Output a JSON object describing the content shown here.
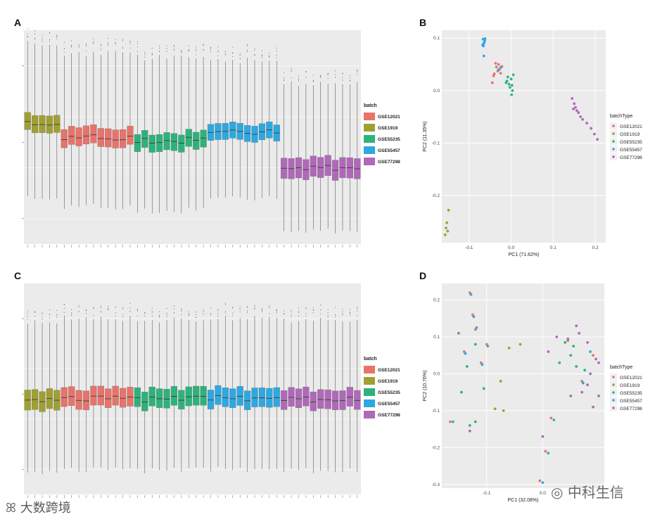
{
  "panels": [
    {
      "letter": "A",
      "type": "boxplot",
      "legend_title": "batch"
    },
    {
      "letter": "B",
      "type": "scatter",
      "legend_title": "batchType"
    },
    {
      "letter": "C",
      "type": "boxplot",
      "legend_title": "batch"
    },
    {
      "letter": "D",
      "type": "scatter",
      "legend_title": "batchType"
    }
  ],
  "batches": [
    {
      "name": "GSE12021",
      "color": "#E8736B"
    },
    {
      "name": "GSE1919",
      "color": "#A0A032"
    },
    {
      "name": "GSE55235",
      "color": "#2DB37A"
    },
    {
      "name": "GSE55457",
      "color": "#2EA8E0"
    },
    {
      "name": "GSE77298",
      "color": "#B069B8"
    }
  ],
  "watermarks": {
    "left": "大数跨境",
    "right": "中科生信"
  },
  "chart_data": [
    {
      "panel": "A",
      "type": "boxplot",
      "title": "",
      "group_order": [
        "GSE1919",
        "GSE12021",
        "GSE55235",
        "GSE55457",
        "GSE77298"
      ],
      "groups": [
        {
          "name": "GSE1919",
          "n": 5,
          "q1": 0.35,
          "median": 0.43,
          "q3": 0.52,
          "whisker_low": -0.3,
          "whisker_high": 1.22
        },
        {
          "name": "GSE12021",
          "n": 10,
          "q1": 0.22,
          "median": 0.3,
          "q3": 0.4,
          "whisker_low": -0.38,
          "whisker_high": 1.12
        },
        {
          "name": "GSE55235",
          "n": 10,
          "q1": 0.18,
          "median": 0.27,
          "q3": 0.35,
          "whisker_low": -0.42,
          "whisker_high": 1.08
        },
        {
          "name": "GSE55457",
          "n": 10,
          "q1": 0.27,
          "median": 0.35,
          "q3": 0.43,
          "whisker_low": -0.3,
          "whisker_high": 1.05
        },
        {
          "name": "GSE77298",
          "n": 11,
          "q1": -0.1,
          "median": 0.0,
          "q3": 0.1,
          "whisker_low": -0.62,
          "whisker_high": 0.82
        }
      ]
    },
    {
      "panel": "B",
      "type": "scatter",
      "title": "",
      "xlabel": "PC1 (71.62%)",
      "ylabel": "PC2 (11.35%)",
      "xlim": [
        -0.165,
        0.225
      ],
      "ylim": [
        -0.29,
        0.115
      ],
      "xticks": [
        -0.1,
        0,
        0.1,
        0.2
      ],
      "xtick_labels": [
        "-0.1",
        "0.0",
        "0.1",
        "0.2"
      ],
      "yticks": [
        0.1,
        0,
        -0.1,
        -0.2
      ],
      "ytick_labels": [
        "0.1",
        "0.0",
        "-0.1",
        "-0.2"
      ],
      "series": [
        {
          "name": "GSE12021",
          "points": [
            [
              -0.045,
              0.015
            ],
            [
              -0.04,
              0.032
            ],
            [
              -0.035,
              0.045
            ],
            [
              -0.032,
              0.037
            ],
            [
              -0.03,
              0.05
            ],
            [
              -0.028,
              0.04
            ],
            [
              -0.025,
              0.033
            ],
            [
              -0.037,
              0.052
            ],
            [
              -0.022,
              0.046
            ],
            [
              -0.042,
              0.028
            ]
          ]
        },
        {
          "name": "GSE1919",
          "points": [
            [
              -0.157,
              -0.275
            ],
            [
              -0.155,
              -0.262
            ],
            [
              -0.153,
              -0.252
            ],
            [
              -0.151,
              -0.268
            ],
            [
              -0.149,
              -0.228
            ]
          ]
        },
        {
          "name": "GSE55235",
          "points": [
            [
              -0.01,
              0.018
            ],
            [
              -0.005,
              0.012
            ],
            [
              0.0,
              0.022
            ],
            [
              0.005,
              0.03
            ],
            [
              -0.003,
              0.006
            ],
            [
              0.001,
              -0.008
            ],
            [
              -0.008,
              0.026
            ],
            [
              0.002,
              0.01
            ],
            [
              -0.012,
              0.015
            ],
            [
              0.003,
              0.0
            ]
          ]
        },
        {
          "name": "GSE55457",
          "points": [
            [
              -0.067,
              0.098
            ],
            [
              -0.065,
              0.09
            ],
            [
              -0.063,
              0.095
            ],
            [
              -0.066,
              0.085
            ],
            [
              -0.064,
              0.092
            ],
            [
              -0.062,
              0.099
            ],
            [
              -0.068,
              0.087
            ],
            [
              -0.065,
              0.066
            ],
            [
              -0.03,
              0.04
            ],
            [
              -0.025,
              0.044
            ]
          ]
        },
        {
          "name": "GSE77298",
          "points": [
            [
              0.145,
              -0.015
            ],
            [
              0.15,
              -0.025
            ],
            [
              0.153,
              -0.032
            ],
            [
              0.156,
              -0.038
            ],
            [
              0.16,
              -0.042
            ],
            [
              0.165,
              -0.05
            ],
            [
              0.17,
              -0.055
            ],
            [
              0.18,
              -0.062
            ],
            [
              0.19,
              -0.072
            ],
            [
              0.198,
              -0.083
            ],
            [
              0.205,
              -0.093
            ],
            [
              0.148,
              -0.035
            ]
          ]
        }
      ]
    },
    {
      "panel": "C",
      "type": "boxplot",
      "title": "",
      "group_order": [
        "GSE1919",
        "GSE12021",
        "GSE55235",
        "GSE55457",
        "GSE77298"
      ],
      "groups": [
        {
          "name": "GSE1919",
          "n": 5,
          "q1": 0.1,
          "median": 0.2,
          "q3": 0.3,
          "whisker_low": -0.52,
          "whisker_high": 0.98
        },
        {
          "name": "GSE12021",
          "n": 10,
          "q1": 0.12,
          "median": 0.21,
          "q3": 0.31,
          "whisker_low": -0.5,
          "whisker_high": 1.0
        },
        {
          "name": "GSE55235",
          "n": 10,
          "q1": 0.11,
          "median": 0.2,
          "q3": 0.3,
          "whisker_low": -0.51,
          "whisker_high": 0.99
        },
        {
          "name": "GSE55457",
          "n": 10,
          "q1": 0.12,
          "median": 0.21,
          "q3": 0.31,
          "whisker_low": -0.5,
          "whisker_high": 1.0
        },
        {
          "name": "GSE77298",
          "n": 11,
          "q1": 0.11,
          "median": 0.2,
          "q3": 0.3,
          "whisker_low": -0.51,
          "whisker_high": 0.99
        }
      ]
    },
    {
      "panel": "D",
      "type": "scatter",
      "title": "",
      "xlabel": "PC1 (32.08%)",
      "ylabel": "PC2 (10.76%)",
      "xlim": [
        -0.18,
        0.11
      ],
      "ylim": [
        -0.31,
        0.245
      ],
      "xticks": [
        -0.1,
        0.0
      ],
      "xtick_labels": [
        "-0.1",
        "0.0"
      ],
      "yticks": [
        0.2,
        0.1,
        0.0,
        -0.1,
        -0.2,
        -0.3
      ],
      "ytick_labels": [
        "0.2",
        "0.1",
        "0.0",
        "-0.1",
        "-0.2",
        "-0.3"
      ],
      "series": [
        {
          "name": "GSE12021",
          "points": [
            [
              -0.13,
              0.22
            ],
            [
              -0.125,
              0.16
            ],
            [
              -0.12,
              0.12
            ],
            [
              -0.1,
              0.08
            ],
            [
              -0.14,
              0.06
            ],
            [
              -0.11,
              0.03
            ],
            [
              -0.165,
              -0.13
            ],
            [
              0.015,
              -0.12
            ],
            [
              0.005,
              -0.21
            ],
            [
              -0.005,
              -0.29
            ],
            [
              0.07,
              -0.02
            ],
            [
              0.09,
              0.05
            ]
          ]
        },
        {
          "name": "GSE1919",
          "points": [
            [
              -0.06,
              0.07
            ],
            [
              -0.04,
              0.08
            ],
            [
              -0.075,
              -0.02
            ],
            [
              -0.085,
              -0.095
            ],
            [
              -0.07,
              -0.1
            ],
            [
              0.045,
              0.09
            ]
          ]
        },
        {
          "name": "GSE55235",
          "points": [
            [
              -0.12,
              0.08
            ],
            [
              -0.135,
              0.02
            ],
            [
              -0.145,
              -0.05
            ],
            [
              -0.13,
              -0.14
            ],
            [
              -0.12,
              -0.13
            ],
            [
              -0.105,
              -0.04
            ],
            [
              0.03,
              0.03
            ],
            [
              0.04,
              0.085
            ],
            [
              0.055,
              0.075
            ],
            [
              0.075,
              0.01
            ],
            [
              0.05,
              0.05
            ],
            [
              0.06,
              0.02
            ]
          ]
        },
        {
          "name": "GSE55457",
          "points": [
            [
              -0.128,
              0.215
            ],
            [
              -0.123,
              0.155
            ],
            [
              -0.118,
              0.125
            ],
            [
              -0.098,
              0.075
            ],
            [
              -0.138,
              0.055
            ],
            [
              -0.108,
              0.025
            ],
            [
              -0.16,
              -0.13
            ],
            [
              0.02,
              -0.125
            ],
            [
              0.01,
              -0.215
            ],
            [
              0.0,
              -0.295
            ],
            [
              0.072,
              -0.025
            ],
            [
              0.085,
              0.06
            ]
          ]
        },
        {
          "name": "GSE77298",
          "points": [
            [
              -0.15,
              0.11
            ],
            [
              -0.13,
              -0.155
            ],
            [
              0.01,
              0.06
            ],
            [
              0.025,
              0.1
            ],
            [
              0.045,
              0.095
            ],
            [
              0.065,
              0.11
            ],
            [
              0.08,
              0.085
            ],
            [
              0.095,
              0.04
            ],
            [
              0.1,
              0.03
            ],
            [
              0.085,
              0.0
            ],
            [
              0.07,
              -0.05
            ],
            [
              0.09,
              -0.09
            ],
            [
              0.1,
              -0.06
            ],
            [
              0.08,
              -0.03
            ],
            [
              0.06,
              0.13
            ],
            [
              0.05,
              -0.06
            ],
            [
              0.0,
              -0.17
            ]
          ]
        }
      ]
    }
  ]
}
